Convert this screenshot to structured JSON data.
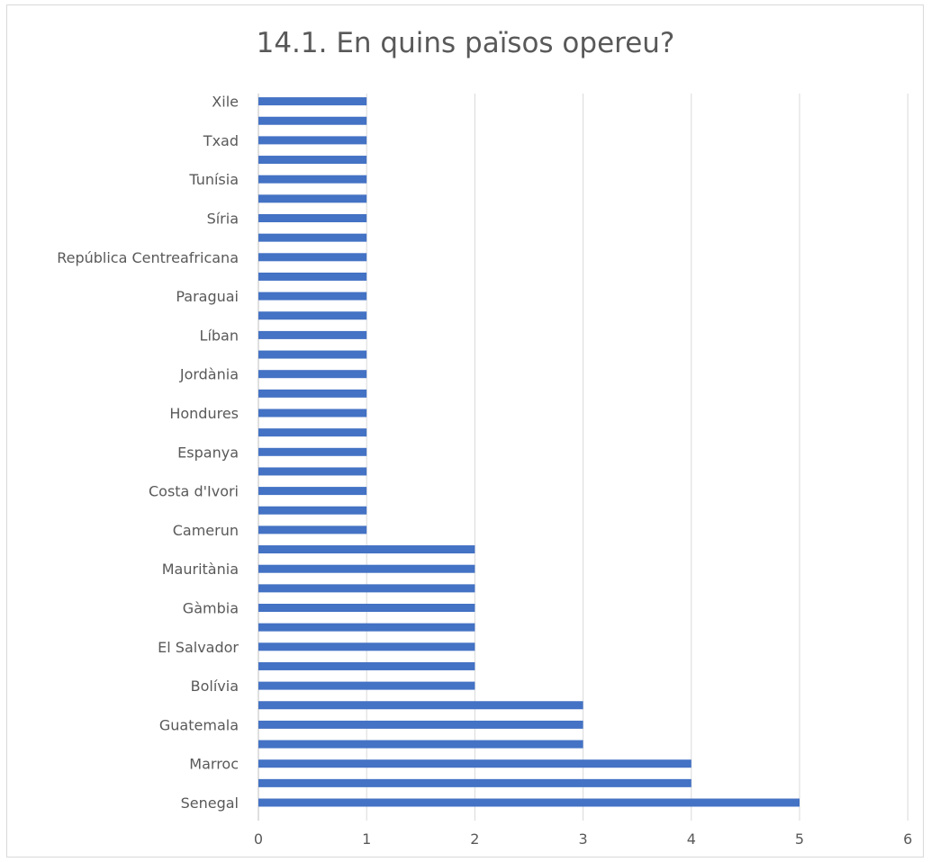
{
  "chart_data": {
    "type": "bar",
    "orientation": "horizontal",
    "title": "14.1. En quins països opereu?",
    "xlabel": "",
    "ylabel": "",
    "xlim": [
      0,
      6
    ],
    "x_ticks": [
      0,
      1,
      2,
      3,
      4,
      5,
      6
    ],
    "grid": "vertical",
    "legend": "none",
    "bar_color": "#4472c4",
    "categories": [
      "Senegal",
      "",
      "Marroc",
      "",
      "Guatemala",
      "",
      "Bolívia",
      "",
      "El Salvador",
      "",
      "Gàmbia",
      "",
      "Mauritània",
      "",
      "Camerun",
      "",
      "Costa d'Ivori",
      "",
      "Espanya",
      "",
      "Hondures",
      "",
      "Jordània",
      "",
      "Líban",
      "",
      "Paraguai",
      "",
      "República Centreafricana",
      "",
      "Síria",
      "",
      "Tunísia",
      "",
      "Txad",
      "",
      "Xile"
    ],
    "values": [
      5,
      4,
      4,
      3,
      3,
      3,
      2,
      2,
      2,
      2,
      2,
      2,
      2,
      2,
      1,
      1,
      1,
      1,
      1,
      1,
      1,
      1,
      1,
      1,
      1,
      1,
      1,
      1,
      1,
      1,
      1,
      1,
      1,
      1,
      1,
      1,
      1
    ]
  }
}
